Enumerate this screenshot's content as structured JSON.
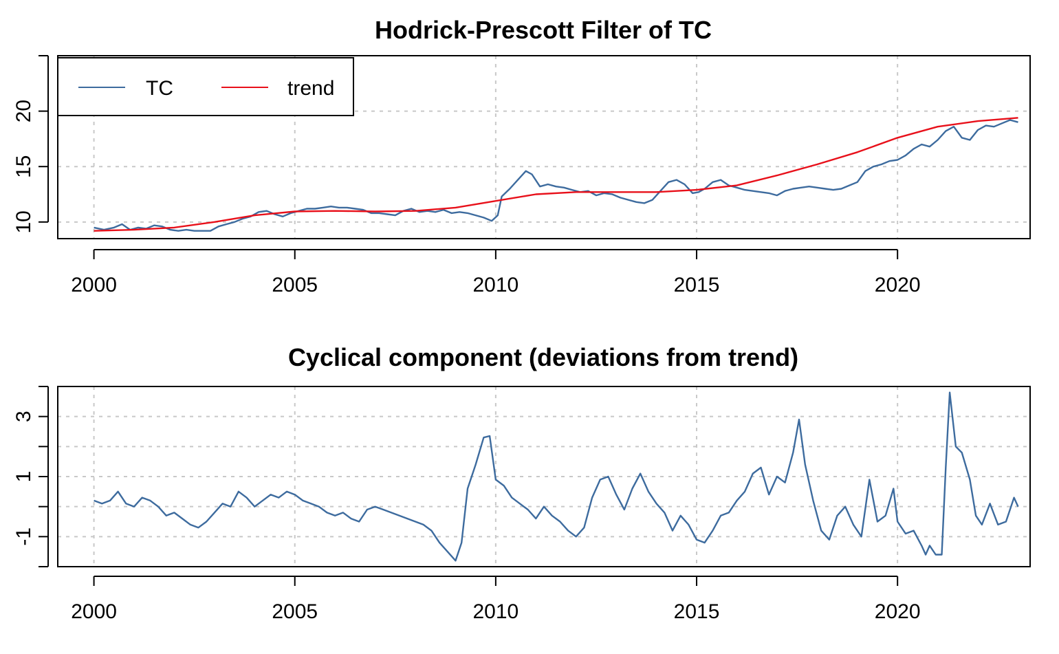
{
  "colors": {
    "tc": "#3D6B9E",
    "trend": "#E8101A"
  },
  "chart_data": [
    {
      "type": "line",
      "title": "Hodrick-Prescott Filter of TC",
      "xlabel": "",
      "ylabel": "",
      "xlim": [
        1999.1,
        2023.3
      ],
      "ylim": [
        8.5,
        25.0
      ],
      "x_ticks": [
        "2000",
        "2005",
        "2010",
        "2015",
        "2020"
      ],
      "y_ticks": [
        "10",
        "15",
        "20"
      ],
      "grid": true,
      "legend": {
        "position": "top-left",
        "entries": [
          "TC",
          "trend"
        ]
      },
      "series": [
        {
          "name": "TC",
          "color": "#3D6B9E",
          "points": [
            [
              2000.0,
              9.5
            ],
            [
              2000.25,
              9.3
            ],
            [
              2000.5,
              9.5
            ],
            [
              2000.7,
              9.8
            ],
            [
              2000.9,
              9.3
            ],
            [
              2001.1,
              9.5
            ],
            [
              2001.3,
              9.4
            ],
            [
              2001.5,
              9.7
            ],
            [
              2001.7,
              9.6
            ],
            [
              2001.9,
              9.3
            ],
            [
              2002.1,
              9.2
            ],
            [
              2002.3,
              9.3
            ],
            [
              2002.5,
              9.2
            ],
            [
              2002.7,
              9.2
            ],
            [
              2002.9,
              9.2
            ],
            [
              2003.1,
              9.6
            ],
            [
              2003.3,
              9.8
            ],
            [
              2003.5,
              10.0
            ],
            [
              2003.7,
              10.3
            ],
            [
              2003.9,
              10.5
            ],
            [
              2004.1,
              10.9
            ],
            [
              2004.3,
              11.0
            ],
            [
              2004.5,
              10.7
            ],
            [
              2004.7,
              10.5
            ],
            [
              2004.9,
              10.8
            ],
            [
              2005.1,
              11.0
            ],
            [
              2005.3,
              11.2
            ],
            [
              2005.5,
              11.2
            ],
            [
              2005.7,
              11.3
            ],
            [
              2005.9,
              11.4
            ],
            [
              2006.1,
              11.3
            ],
            [
              2006.3,
              11.3
            ],
            [
              2006.5,
              11.2
            ],
            [
              2006.7,
              11.1
            ],
            [
              2006.9,
              10.8
            ],
            [
              2007.1,
              10.8
            ],
            [
              2007.3,
              10.7
            ],
            [
              2007.5,
              10.6
            ],
            [
              2007.7,
              11.0
            ],
            [
              2007.9,
              11.2
            ],
            [
              2008.1,
              10.9
            ],
            [
              2008.3,
              11.0
            ],
            [
              2008.5,
              10.9
            ],
            [
              2008.7,
              11.1
            ],
            [
              2008.9,
              10.8
            ],
            [
              2009.1,
              10.9
            ],
            [
              2009.3,
              10.8
            ],
            [
              2009.5,
              10.6
            ],
            [
              2009.7,
              10.4
            ],
            [
              2009.9,
              10.1
            ],
            [
              2010.05,
              10.6
            ],
            [
              2010.15,
              12.3
            ],
            [
              2010.35,
              13.0
            ],
            [
              2010.55,
              13.8
            ],
            [
              2010.75,
              14.6
            ],
            [
              2010.9,
              14.3
            ],
            [
              2011.1,
              13.2
            ],
            [
              2011.3,
              13.4
            ],
            [
              2011.5,
              13.2
            ],
            [
              2011.7,
              13.1
            ],
            [
              2011.9,
              12.9
            ],
            [
              2012.1,
              12.7
            ],
            [
              2012.3,
              12.8
            ],
            [
              2012.5,
              12.4
            ],
            [
              2012.7,
              12.6
            ],
            [
              2012.9,
              12.5
            ],
            [
              2013.1,
              12.2
            ],
            [
              2013.3,
              12.0
            ],
            [
              2013.5,
              11.8
            ],
            [
              2013.7,
              11.7
            ],
            [
              2013.9,
              12.0
            ],
            [
              2014.1,
              12.8
            ],
            [
              2014.3,
              13.6
            ],
            [
              2014.5,
              13.8
            ],
            [
              2014.7,
              13.4
            ],
            [
              2014.9,
              12.6
            ],
            [
              2015.05,
              12.7
            ],
            [
              2015.2,
              13.0
            ],
            [
              2015.4,
              13.6
            ],
            [
              2015.6,
              13.8
            ],
            [
              2015.8,
              13.3
            ],
            [
              2016.0,
              13.1
            ],
            [
              2016.2,
              12.9
            ],
            [
              2016.4,
              12.8
            ],
            [
              2016.6,
              12.7
            ],
            [
              2016.8,
              12.6
            ],
            [
              2017.0,
              12.4
            ],
            [
              2017.2,
              12.8
            ],
            [
              2017.4,
              13.0
            ],
            [
              2017.6,
              13.1
            ],
            [
              2017.8,
              13.2
            ],
            [
              2018.0,
              13.1
            ],
            [
              2018.2,
              13.0
            ],
            [
              2018.4,
              12.9
            ],
            [
              2018.6,
              13.0
            ],
            [
              2018.8,
              13.3
            ],
            [
              2019.0,
              13.6
            ],
            [
              2019.2,
              14.6
            ],
            [
              2019.4,
              15.0
            ],
            [
              2019.6,
              15.2
            ],
            [
              2019.8,
              15.5
            ],
            [
              2020.0,
              15.6
            ],
            [
              2020.2,
              16.0
            ],
            [
              2020.4,
              16.6
            ],
            [
              2020.6,
              17.0
            ],
            [
              2020.8,
              16.8
            ],
            [
              2021.0,
              17.4
            ],
            [
              2021.2,
              18.2
            ],
            [
              2021.4,
              18.6
            ],
            [
              2021.6,
              17.6
            ],
            [
              2021.8,
              17.4
            ],
            [
              2022.0,
              18.3
            ],
            [
              2022.2,
              18.7
            ],
            [
              2022.4,
              18.6
            ],
            [
              2022.6,
              18.9
            ],
            [
              2022.8,
              19.2
            ],
            [
              2023.0,
              19.0
            ]
          ]
        },
        {
          "name": "trend",
          "color": "#E8101A",
          "points": [
            [
              2000.0,
              9.2
            ],
            [
              2001.0,
              9.3
            ],
            [
              2002.0,
              9.5
            ],
            [
              2003.0,
              10.0
            ],
            [
              2004.0,
              10.6
            ],
            [
              2005.0,
              10.95
            ],
            [
              2006.0,
              11.0
            ],
            [
              2007.0,
              10.95
            ],
            [
              2008.0,
              11.0
            ],
            [
              2009.0,
              11.3
            ],
            [
              2010.0,
              11.9
            ],
            [
              2011.0,
              12.5
            ],
            [
              2012.0,
              12.7
            ],
            [
              2013.0,
              12.7
            ],
            [
              2014.0,
              12.7
            ],
            [
              2015.0,
              12.9
            ],
            [
              2016.0,
              13.3
            ],
            [
              2017.0,
              14.2
            ],
            [
              2018.0,
              15.2
            ],
            [
              2019.0,
              16.3
            ],
            [
              2020.0,
              17.6
            ],
            [
              2021.0,
              18.6
            ],
            [
              2022.0,
              19.1
            ],
            [
              2023.0,
              19.4
            ]
          ]
        }
      ]
    },
    {
      "type": "line",
      "title": "Cyclical component (deviations from trend)",
      "xlabel": "",
      "ylabel": "",
      "xlim": [
        1999.1,
        2023.3
      ],
      "ylim": [
        -2.0,
        4.0
      ],
      "x_ticks": [
        "2000",
        "2005",
        "2010",
        "2015",
        "2020"
      ],
      "y_ticks": [
        "-1",
        "1",
        "3"
      ],
      "grid": true,
      "series": [
        {
          "name": "",
          "color": "#3D6B9E",
          "points": [
            [
              2000.0,
              0.2
            ],
            [
              2000.2,
              0.1
            ],
            [
              2000.4,
              0.2
            ],
            [
              2000.6,
              0.5
            ],
            [
              2000.8,
              0.1
            ],
            [
              2001.0,
              0.0
            ],
            [
              2001.2,
              0.3
            ],
            [
              2001.4,
              0.2
            ],
            [
              2001.6,
              0.0
            ],
            [
              2001.8,
              -0.3
            ],
            [
              2002.0,
              -0.2
            ],
            [
              2002.2,
              -0.4
            ],
            [
              2002.4,
              -0.6
            ],
            [
              2002.6,
              -0.7
            ],
            [
              2002.8,
              -0.5
            ],
            [
              2003.0,
              -0.2
            ],
            [
              2003.2,
              0.1
            ],
            [
              2003.4,
              0.0
            ],
            [
              2003.6,
              0.5
            ],
            [
              2003.8,
              0.3
            ],
            [
              2004.0,
              0.0
            ],
            [
              2004.2,
              0.2
            ],
            [
              2004.4,
              0.4
            ],
            [
              2004.6,
              0.3
            ],
            [
              2004.8,
              0.5
            ],
            [
              2005.0,
              0.4
            ],
            [
              2005.2,
              0.2
            ],
            [
              2005.4,
              0.1
            ],
            [
              2005.6,
              0.0
            ],
            [
              2005.8,
              -0.2
            ],
            [
              2006.0,
              -0.3
            ],
            [
              2006.2,
              -0.2
            ],
            [
              2006.4,
              -0.4
            ],
            [
              2006.6,
              -0.5
            ],
            [
              2006.8,
              -0.1
            ],
            [
              2007.0,
              0.0
            ],
            [
              2007.2,
              -0.1
            ],
            [
              2007.4,
              -0.2
            ],
            [
              2007.6,
              -0.3
            ],
            [
              2007.8,
              -0.4
            ],
            [
              2008.0,
              -0.5
            ],
            [
              2008.2,
              -0.6
            ],
            [
              2008.4,
              -0.8
            ],
            [
              2008.6,
              -1.2
            ],
            [
              2008.8,
              -1.5
            ],
            [
              2009.0,
              -1.8
            ],
            [
              2009.15,
              -1.2
            ],
            [
              2009.3,
              0.6
            ],
            [
              2009.5,
              1.4
            ],
            [
              2009.7,
              2.3
            ],
            [
              2009.85,
              2.35
            ],
            [
              2010.0,
              0.9
            ],
            [
              2010.2,
              0.7
            ],
            [
              2010.4,
              0.3
            ],
            [
              2010.6,
              0.1
            ],
            [
              2010.8,
              -0.1
            ],
            [
              2011.0,
              -0.4
            ],
            [
              2011.2,
              0.0
            ],
            [
              2011.4,
              -0.3
            ],
            [
              2011.6,
              -0.5
            ],
            [
              2011.8,
              -0.8
            ],
            [
              2012.0,
              -1.0
            ],
            [
              2012.2,
              -0.7
            ],
            [
              2012.4,
              0.3
            ],
            [
              2012.6,
              0.9
            ],
            [
              2012.8,
              1.0
            ],
            [
              2013.0,
              0.4
            ],
            [
              2013.2,
              -0.1
            ],
            [
              2013.4,
              0.6
            ],
            [
              2013.6,
              1.1
            ],
            [
              2013.8,
              0.5
            ],
            [
              2014.0,
              0.1
            ],
            [
              2014.2,
              -0.2
            ],
            [
              2014.4,
              -0.8
            ],
            [
              2014.6,
              -0.3
            ],
            [
              2014.8,
              -0.6
            ],
            [
              2015.0,
              -1.1
            ],
            [
              2015.2,
              -1.2
            ],
            [
              2015.4,
              -0.8
            ],
            [
              2015.6,
              -0.3
            ],
            [
              2015.8,
              -0.2
            ],
            [
              2016.0,
              0.2
            ],
            [
              2016.2,
              0.5
            ],
            [
              2016.4,
              1.1
            ],
            [
              2016.6,
              1.3
            ],
            [
              2016.8,
              0.4
            ],
            [
              2017.0,
              1.0
            ],
            [
              2017.2,
              0.8
            ],
            [
              2017.4,
              1.8
            ],
            [
              2017.55,
              2.9
            ],
            [
              2017.7,
              1.4
            ],
            [
              2017.9,
              0.2
            ],
            [
              2018.1,
              -0.8
            ],
            [
              2018.3,
              -1.1
            ],
            [
              2018.5,
              -0.3
            ],
            [
              2018.7,
              0.0
            ],
            [
              2018.9,
              -0.6
            ],
            [
              2019.1,
              -1.0
            ],
            [
              2019.3,
              0.9
            ],
            [
              2019.5,
              -0.5
            ],
            [
              2019.7,
              -0.3
            ],
            [
              2019.9,
              0.6
            ],
            [
              2020.0,
              -0.5
            ],
            [
              2020.2,
              -0.9
            ],
            [
              2020.4,
              -0.8
            ],
            [
              2020.6,
              -1.3
            ],
            [
              2020.7,
              -1.6
            ],
            [
              2020.8,
              -1.3
            ],
            [
              2020.95,
              -1.6
            ],
            [
              2021.1,
              -1.6
            ],
            [
              2021.2,
              1.3
            ],
            [
              2021.3,
              3.8
            ],
            [
              2021.45,
              2.0
            ],
            [
              2021.6,
              1.8
            ],
            [
              2021.8,
              0.9
            ],
            [
              2021.95,
              -0.3
            ],
            [
              2022.1,
              -0.6
            ],
            [
              2022.3,
              0.1
            ],
            [
              2022.5,
              -0.6
            ],
            [
              2022.7,
              -0.5
            ],
            [
              2022.9,
              0.3
            ],
            [
              2023.0,
              0.0
            ]
          ]
        }
      ]
    }
  ]
}
